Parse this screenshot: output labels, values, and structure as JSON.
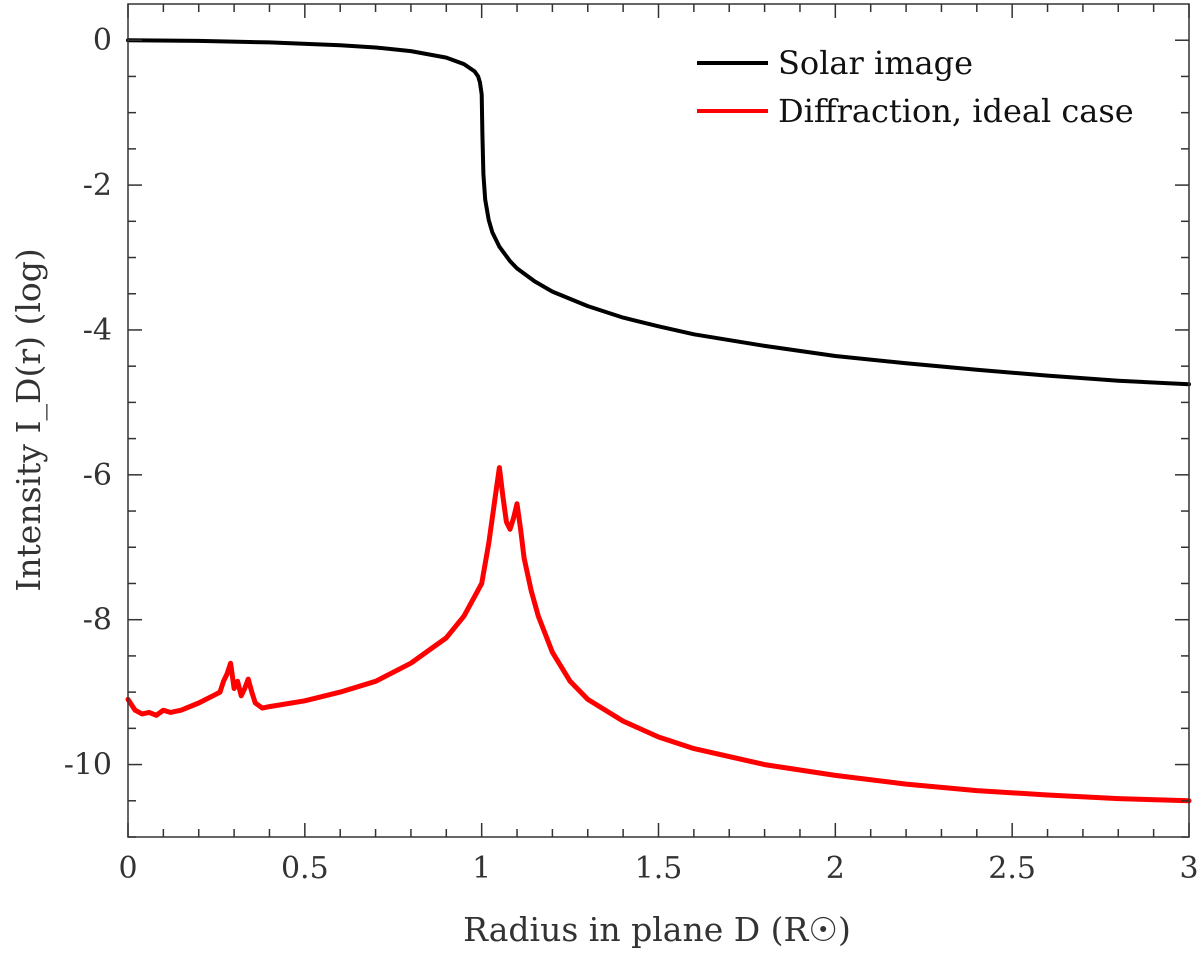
{
  "chart_data": {
    "type": "line",
    "title": "",
    "xlabel": "Radius in plane D (R☉)",
    "ylabel": "Intensity I_D(r) (log)",
    "xlim": [
      0,
      3
    ],
    "ylim": [
      -11,
      0.5
    ],
    "xticks": [
      0,
      0.5,
      1,
      1.5,
      2,
      2.5,
      3
    ],
    "xtick_labels": [
      "0",
      "0.5",
      "1",
      "1.5",
      "2",
      "2.5",
      "3"
    ],
    "yticks": [
      0,
      -2,
      -4,
      -6,
      -8,
      -10
    ],
    "ytick_labels": [
      "0",
      "-2",
      "-4",
      "-6",
      "-8",
      "-10"
    ],
    "grid": false,
    "legend_position": "top-right",
    "series": [
      {
        "name": "Solar image",
        "color": "#000000",
        "x": [
          0,
          0.2,
          0.4,
          0.6,
          0.7,
          0.8,
          0.9,
          0.95,
          0.98,
          0.99,
          0.995,
          1.0,
          1.002,
          1.005,
          1.01,
          1.02,
          1.03,
          1.05,
          1.08,
          1.1,
          1.15,
          1.2,
          1.3,
          1.4,
          1.5,
          1.6,
          1.8,
          2.0,
          2.2,
          2.4,
          2.6,
          2.8,
          3.0
        ],
        "y": [
          0,
          -0.01,
          -0.03,
          -0.07,
          -0.1,
          -0.15,
          -0.24,
          -0.33,
          -0.43,
          -0.5,
          -0.58,
          -0.75,
          -1.3,
          -1.85,
          -2.2,
          -2.48,
          -2.65,
          -2.85,
          -3.05,
          -3.15,
          -3.33,
          -3.47,
          -3.67,
          -3.83,
          -3.95,
          -4.06,
          -4.22,
          -4.36,
          -4.46,
          -4.55,
          -4.63,
          -4.7,
          -4.75
        ]
      },
      {
        "name": "Diffraction, ideal case",
        "color": "#ff0000",
        "x": [
          0,
          0.02,
          0.04,
          0.06,
          0.08,
          0.1,
          0.12,
          0.15,
          0.2,
          0.24,
          0.26,
          0.27,
          0.28,
          0.29,
          0.3,
          0.31,
          0.32,
          0.33,
          0.34,
          0.35,
          0.36,
          0.38,
          0.4,
          0.5,
          0.6,
          0.7,
          0.8,
          0.9,
          0.95,
          1.0,
          1.02,
          1.04,
          1.05,
          1.06,
          1.07,
          1.08,
          1.09,
          1.1,
          1.11,
          1.12,
          1.14,
          1.16,
          1.2,
          1.25,
          1.3,
          1.4,
          1.5,
          1.6,
          1.8,
          2.0,
          2.2,
          2.4,
          2.6,
          2.8,
          3.0
        ],
        "y": [
          -9.1,
          -9.25,
          -9.3,
          -9.28,
          -9.32,
          -9.25,
          -9.28,
          -9.25,
          -9.15,
          -9.05,
          -9.0,
          -8.85,
          -8.75,
          -8.6,
          -8.95,
          -8.85,
          -9.05,
          -8.95,
          -8.82,
          -9.0,
          -9.15,
          -9.22,
          -9.2,
          -9.12,
          -9.0,
          -8.85,
          -8.6,
          -8.25,
          -7.95,
          -7.5,
          -6.95,
          -6.25,
          -5.9,
          -6.3,
          -6.65,
          -6.75,
          -6.6,
          -6.4,
          -6.75,
          -7.15,
          -7.6,
          -7.95,
          -8.45,
          -8.85,
          -9.1,
          -9.4,
          -9.62,
          -9.78,
          -10.0,
          -10.15,
          -10.27,
          -10.36,
          -10.42,
          -10.47,
          -10.5
        ]
      }
    ]
  }
}
